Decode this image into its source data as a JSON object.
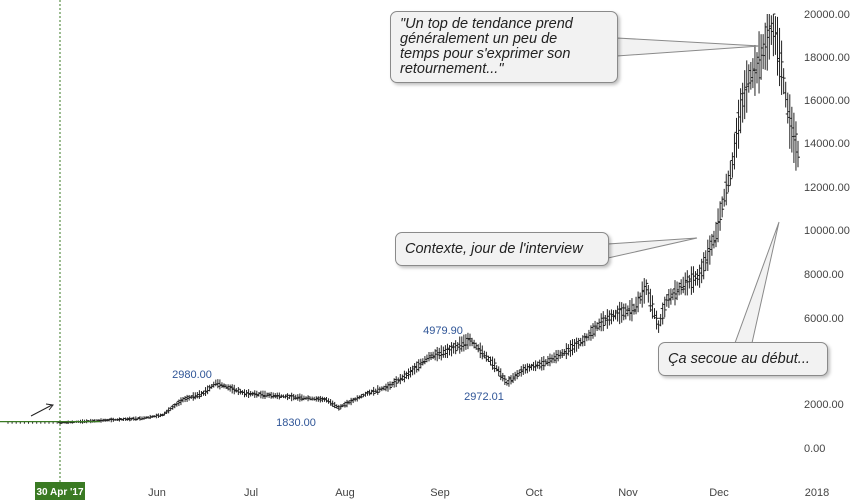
{
  "chart_data": {
    "type": "bar",
    "subtype": "ohlc",
    "ylim": [
      0,
      20000
    ],
    "y_ticks": [
      "20000.00",
      "18000.00",
      "16000.00",
      "14000.00",
      "12000.00",
      "10000.00",
      "8000.00",
      "6000.00",
      "2000.00",
      "0.00"
    ],
    "x_ticks": [
      "Jun",
      "Jul",
      "Aug",
      "Sep",
      "Oct",
      "Nov",
      "Dec",
      "2018"
    ],
    "x_highlight_label": "30 Apr '17",
    "price_labels": [
      "2980.00",
      "1830.00",
      "4979.90",
      "2972.01"
    ],
    "path": [
      [
        0,
        1150
      ],
      [
        10,
        1250
      ],
      [
        20,
        1350
      ],
      [
        25,
        1500
      ],
      [
        30,
        2200
      ],
      [
        35,
        2500
      ],
      [
        38,
        2980
      ],
      [
        45,
        2500
      ],
      [
        55,
        2350
      ],
      [
        65,
        2200
      ],
      [
        68,
        1830
      ],
      [
        75,
        2500
      ],
      [
        80,
        2800
      ],
      [
        85,
        3400
      ],
      [
        90,
        4200
      ],
      [
        95,
        4500
      ],
      [
        100,
        4979.9
      ],
      [
        103,
        4400
      ],
      [
        106,
        3800
      ],
      [
        109,
        2972.01
      ],
      [
        113,
        3600
      ],
      [
        118,
        3900
      ],
      [
        123,
        4400
      ],
      [
        128,
        5000
      ],
      [
        132,
        5800
      ],
      [
        136,
        6200
      ],
      [
        140,
        6400
      ],
      [
        143,
        7400
      ],
      [
        146,
        5600
      ],
      [
        148,
        6800
      ],
      [
        152,
        7500
      ],
      [
        156,
        7900
      ],
      [
        160,
        9800
      ],
      [
        162,
        11500
      ],
      [
        164,
        13000
      ],
      [
        166,
        15500
      ],
      [
        168,
        17000
      ],
      [
        170,
        17500
      ],
      [
        172,
        18500
      ],
      [
        174,
        19500
      ],
      [
        176,
        17500
      ],
      [
        178,
        15000
      ],
      [
        180,
        13500
      ]
    ],
    "colors": {
      "bars": "#222222",
      "highlight": "#3a7a23",
      "price_label": "#2f5597",
      "axis_text": "#444444"
    }
  },
  "annotations": {
    "top": [
      "\"Un top de tendance prend",
      "généralement un peu de",
      "temps pour s'exprimer son",
      "retournement...\""
    ],
    "middle": "Contexte, jour de l'interview",
    "bottom": "Ça secoue au début..."
  }
}
